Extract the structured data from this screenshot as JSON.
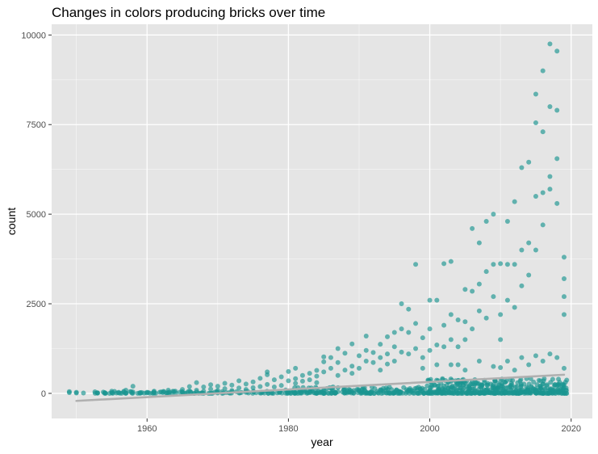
{
  "chart_data": {
    "type": "scatter",
    "title": "Changes in colors producing bricks over time",
    "xlabel": "year",
    "ylabel": "count",
    "xlim": [
      1946.5,
      2023.0
    ],
    "ylim": [
      -700,
      10300
    ],
    "x_ticks": [
      1960,
      1980,
      2000,
      2020
    ],
    "y_ticks": [
      0,
      2500,
      5000,
      7500,
      10000
    ],
    "x_tick_labels": [
      "1960",
      "1980",
      "2000",
      "2020"
    ],
    "y_tick_labels": [
      "0",
      "2500",
      "5000",
      "7500",
      "10000"
    ],
    "x_minor_ticks": [
      1950,
      1970,
      1990,
      2010
    ],
    "y_minor_ticks": [
      1250,
      3750,
      6250,
      8750
    ],
    "grid": true,
    "legend": "none",
    "colors": {
      "panel": "#e5e5e5",
      "grid": "#ffffff",
      "point": "#1a9590",
      "trend": "#b0b0b0"
    },
    "trend": {
      "x": [
        1950,
        2019
      ],
      "y": [
        -210,
        520
      ]
    },
    "points": [
      [
        1949,
        20
      ],
      [
        1949,
        50
      ],
      [
        1950,
        10
      ],
      [
        1950,
        30
      ],
      [
        1951,
        10
      ],
      [
        1953,
        5
      ],
      [
        1954,
        20
      ],
      [
        1955,
        60
      ],
      [
        1955,
        20
      ],
      [
        1956,
        30
      ],
      [
        1957,
        90
      ],
      [
        1957,
        10
      ],
      [
        1958,
        200
      ],
      [
        1958,
        40
      ],
      [
        1959,
        20
      ],
      [
        1960,
        30
      ],
      [
        1961,
        60
      ],
      [
        1961,
        10
      ],
      [
        1962,
        40
      ],
      [
        1963,
        90
      ],
      [
        1963,
        30
      ],
      [
        1964,
        60
      ],
      [
        1965,
        110
      ],
      [
        1965,
        40
      ],
      [
        1966,
        190
      ],
      [
        1966,
        70
      ],
      [
        1967,
        300
      ],
      [
        1967,
        90
      ],
      [
        1968,
        180
      ],
      [
        1968,
        60
      ],
      [
        1969,
        240
      ],
      [
        1969,
        120
      ],
      [
        1970,
        200
      ],
      [
        1970,
        80
      ],
      [
        1971,
        280
      ],
      [
        1971,
        130
      ],
      [
        1972,
        230
      ],
      [
        1972,
        80
      ],
      [
        1973,
        350
      ],
      [
        1973,
        150
      ],
      [
        1974,
        260
      ],
      [
        1974,
        110
      ],
      [
        1975,
        320
      ],
      [
        1975,
        160
      ],
      [
        1976,
        420
      ],
      [
        1976,
        190
      ],
      [
        1977,
        600
      ],
      [
        1977,
        250
      ],
      [
        1977,
        520
      ],
      [
        1978,
        380
      ],
      [
        1978,
        180
      ],
      [
        1979,
        460
      ],
      [
        1979,
        220
      ],
      [
        1980,
        610
      ],
      [
        1980,
        350
      ],
      [
        1981,
        700
      ],
      [
        1981,
        410
      ],
      [
        1981,
        280
      ],
      [
        1982,
        500
      ],
      [
        1982,
        340
      ],
      [
        1983,
        560
      ],
      [
        1983,
        380
      ],
      [
        1984,
        640
      ],
      [
        1984,
        480
      ],
      [
        1984,
        300
      ],
      [
        1985,
        1020
      ],
      [
        1985,
        880
      ],
      [
        1985,
        600
      ],
      [
        1986,
        1000
      ],
      [
        1986,
        700
      ],
      [
        1987,
        1250
      ],
      [
        1987,
        860
      ],
      [
        1987,
        500
      ],
      [
        1988,
        1120
      ],
      [
        1988,
        650
      ],
      [
        1989,
        1380
      ],
      [
        1989,
        760
      ],
      [
        1989,
        560
      ],
      [
        1990,
        1050
      ],
      [
        1990,
        700
      ],
      [
        1991,
        1600
      ],
      [
        1991,
        1200
      ],
      [
        1991,
        900
      ],
      [
        1992,
        1140
      ],
      [
        1992,
        860
      ],
      [
        1993,
        1370
      ],
      [
        1993,
        1000
      ],
      [
        1993,
        650
      ],
      [
        1994,
        1580
      ],
      [
        1994,
        1100
      ],
      [
        1994,
        820
      ],
      [
        1995,
        1700
      ],
      [
        1995,
        1300
      ],
      [
        1995,
        900
      ],
      [
        1996,
        2500
      ],
      [
        1996,
        1800
      ],
      [
        1996,
        1150
      ],
      [
        1997,
        2350
      ],
      [
        1997,
        1700
      ],
      [
        1997,
        1100
      ],
      [
        1998,
        3600
      ],
      [
        1998,
        1950
      ],
      [
        1998,
        1250
      ],
      [
        1999,
        1550
      ],
      [
        1999,
        1000
      ],
      [
        1999,
        700
      ],
      [
        2000,
        2600
      ],
      [
        2000,
        1800
      ],
      [
        2000,
        1200
      ],
      [
        2001,
        2600
      ],
      [
        2001,
        1350
      ],
      [
        2001,
        800
      ],
      [
        2002,
        3620
      ],
      [
        2002,
        1900
      ],
      [
        2002,
        1300
      ],
      [
        2003,
        3680
      ],
      [
        2003,
        2200
      ],
      [
        2003,
        1500
      ],
      [
        2004,
        2050
      ],
      [
        2004,
        1300
      ],
      [
        2004,
        800
      ],
      [
        2005,
        2900
      ],
      [
        2005,
        2000
      ],
      [
        2005,
        1500
      ],
      [
        2006,
        4600
      ],
      [
        2006,
        2850
      ],
      [
        2006,
        1800
      ],
      [
        2007,
        4200
      ],
      [
        2007,
        3050
      ],
      [
        2007,
        2300
      ],
      [
        2008,
        4800
      ],
      [
        2008,
        3400
      ],
      [
        2008,
        2100
      ],
      [
        2009,
        5000
      ],
      [
        2009,
        3600
      ],
      [
        2009,
        2700
      ],
      [
        2010,
        3620
      ],
      [
        2010,
        2200
      ],
      [
        2010,
        1500
      ],
      [
        2011,
        4800
      ],
      [
        2011,
        3600
      ],
      [
        2011,
        2600
      ],
      [
        2012,
        5350
      ],
      [
        2012,
        3600
      ],
      [
        2012,
        2400
      ],
      [
        2013,
        6300
      ],
      [
        2013,
        4000
      ],
      [
        2013,
        3000
      ],
      [
        2014,
        6450
      ],
      [
        2014,
        4200
      ],
      [
        2014,
        3300
      ],
      [
        2015,
        7550
      ],
      [
        2015,
        8350
      ],
      [
        2015,
        5500
      ],
      [
        2015,
        4000
      ],
      [
        2016,
        9000
      ],
      [
        2016,
        7300
      ],
      [
        2016,
        5600
      ],
      [
        2016,
        4700
      ],
      [
        2017,
        9750
      ],
      [
        2017,
        8000
      ],
      [
        2017,
        6050
      ],
      [
        2017,
        5700
      ],
      [
        2018,
        9550
      ],
      [
        2018,
        7900
      ],
      [
        2018,
        6550
      ],
      [
        2018,
        5300
      ],
      [
        2019,
        3800
      ],
      [
        2019,
        3200
      ],
      [
        2019,
        2700
      ],
      [
        2019,
        2200
      ],
      [
        2003,
        800
      ],
      [
        2005,
        650
      ],
      [
        2007,
        900
      ],
      [
        2009,
        750
      ],
      [
        2011,
        900
      ],
      [
        2013,
        1000
      ],
      [
        2015,
        1050
      ],
      [
        2016,
        900
      ],
      [
        2017,
        1100
      ],
      [
        2018,
        1000
      ],
      [
        2019,
        700
      ],
      [
        2012,
        650
      ],
      [
        2014,
        800
      ],
      [
        2010,
        720
      ]
    ]
  }
}
